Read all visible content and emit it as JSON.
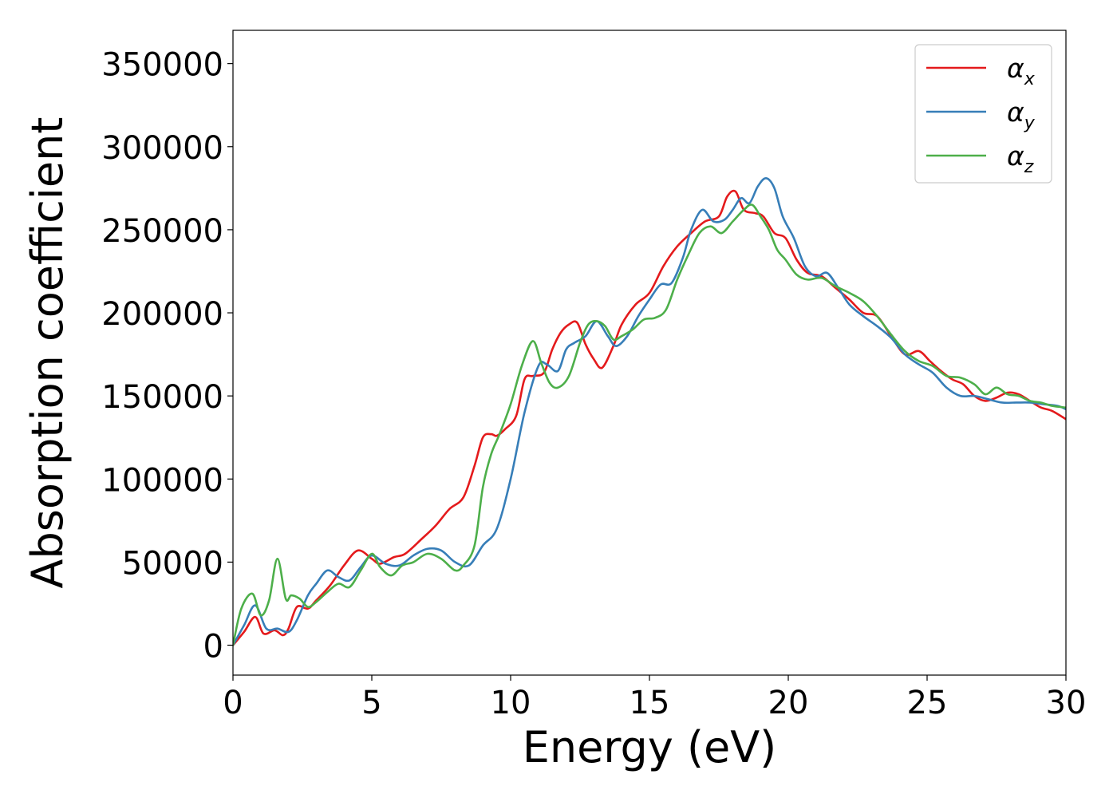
{
  "chart_data": {
    "type": "line",
    "title": "",
    "xlabel": "Energy (eV)",
    "ylabel": "Absorption coefficient",
    "xlim": [
      0,
      30
    ],
    "ylim": [
      -18000,
      370000
    ],
    "xticks": [
      0,
      5,
      10,
      15,
      20,
      25,
      30
    ],
    "yticks": [
      0,
      50000,
      100000,
      150000,
      200000,
      250000,
      300000,
      350000
    ],
    "grid": false,
    "legend_position": "top-right",
    "series": [
      {
        "name": "αx",
        "legend_base": "α",
        "legend_sub": "x",
        "color": "#e41a1c",
        "x": [
          0,
          0.4,
          0.8,
          1.1,
          1.5,
          1.8,
          2.0,
          2.3,
          2.7,
          3.0,
          3.5,
          4.0,
          4.5,
          5.0,
          5.3,
          5.8,
          6.2,
          6.8,
          7.3,
          7.8,
          8.3,
          8.7,
          9.0,
          9.3,
          9.5,
          9.8,
          10.2,
          10.5,
          10.8,
          11.2,
          11.5,
          11.8,
          12.1,
          12.4,
          12.7,
          13.0,
          13.3,
          13.7,
          14.0,
          14.5,
          15.0,
          15.5,
          16.0,
          16.5,
          17.0,
          17.5,
          17.8,
          18.1,
          18.4,
          18.8,
          19.1,
          19.5,
          19.9,
          20.3,
          20.7,
          21.2,
          21.7,
          22.2,
          22.7,
          23.2,
          23.7,
          24.2,
          24.7,
          25.1,
          25.5,
          25.9,
          26.3,
          26.7,
          27.1,
          27.5,
          27.9,
          28.3,
          28.7,
          29.1,
          29.5,
          30.0
        ],
        "values": [
          0,
          8000,
          17000,
          7000,
          9000,
          6000,
          10000,
          23000,
          22000,
          27000,
          36000,
          48000,
          57000,
          52000,
          49000,
          53000,
          55000,
          64000,
          72000,
          82000,
          89000,
          108000,
          125000,
          127000,
          126000,
          130000,
          138000,
          160000,
          162000,
          164000,
          178000,
          188000,
          193000,
          194000,
          181000,
          172000,
          167000,
          180000,
          193000,
          205000,
          212000,
          228000,
          240000,
          248000,
          255000,
          258000,
          270000,
          273000,
          262000,
          260000,
          258000,
          248000,
          245000,
          232000,
          224000,
          222000,
          215000,
          208000,
          200000,
          198000,
          186000,
          175000,
          177000,
          171000,
          165000,
          160000,
          157000,
          150000,
          147000,
          149000,
          152000,
          151000,
          147000,
          143000,
          141000,
          136000
        ]
      },
      {
        "name": "αy",
        "legend_base": "α",
        "legend_sub": "y",
        "color": "#377eb8",
        "x": [
          0,
          0.4,
          0.8,
          1.2,
          1.6,
          2.0,
          2.3,
          2.7,
          3.0,
          3.4,
          3.8,
          4.2,
          4.6,
          5.0,
          5.5,
          6.0,
          6.5,
          7.0,
          7.5,
          8.0,
          8.5,
          9.0,
          9.5,
          10.0,
          10.5,
          11.0,
          11.3,
          11.7,
          12.0,
          12.3,
          12.7,
          13.1,
          13.5,
          13.8,
          14.2,
          14.6,
          15.0,
          15.4,
          15.8,
          16.2,
          16.5,
          16.9,
          17.3,
          17.7,
          18.0,
          18.3,
          18.6,
          18.9,
          19.2,
          19.5,
          19.8,
          20.2,
          20.6,
          21.0,
          21.4,
          21.8,
          22.2,
          22.7,
          23.2,
          23.7,
          24.2,
          24.7,
          25.2,
          25.7,
          26.2,
          26.7,
          27.2,
          27.7,
          28.2,
          28.7,
          29.2,
          29.7,
          30.0
        ],
        "values": [
          0,
          12000,
          24000,
          10000,
          10000,
          8000,
          15000,
          30000,
          37000,
          45000,
          41000,
          39000,
          47000,
          54000,
          49000,
          48000,
          54000,
          58000,
          57000,
          50000,
          48000,
          60000,
          70000,
          100000,
          140000,
          168000,
          169000,
          165000,
          178000,
          182000,
          186000,
          195000,
          186000,
          180000,
          186000,
          198000,
          208000,
          217000,
          218000,
          233000,
          250000,
          262000,
          255000,
          256000,
          262000,
          269000,
          266000,
          276000,
          281000,
          275000,
          258000,
          245000,
          228000,
          222000,
          224000,
          215000,
          205000,
          198000,
          192000,
          185000,
          175000,
          169000,
          164000,
          155000,
          150000,
          150000,
          148000,
          146000,
          146000,
          146000,
          145000,
          144000,
          142000
        ]
      },
      {
        "name": "αz",
        "legend_base": "α",
        "legend_sub": "z",
        "color": "#4daf4a",
        "x": [
          0,
          0.3,
          0.7,
          1.0,
          1.3,
          1.6,
          1.9,
          2.1,
          2.4,
          2.7,
          3.0,
          3.4,
          3.8,
          4.2,
          4.6,
          5.0,
          5.3,
          5.7,
          6.1,
          6.5,
          7.0,
          7.5,
          8.0,
          8.3,
          8.7,
          9.0,
          9.3,
          9.6,
          10.0,
          10.4,
          10.8,
          11.1,
          11.4,
          11.7,
          12.1,
          12.5,
          12.8,
          13.1,
          13.4,
          13.7,
          14.0,
          14.4,
          14.8,
          15.2,
          15.6,
          16.0,
          16.4,
          16.8,
          17.2,
          17.6,
          18.0,
          18.4,
          18.7,
          19.0,
          19.3,
          19.6,
          19.9,
          20.3,
          20.7,
          21.2,
          21.7,
          22.2,
          22.7,
          23.2,
          23.7,
          24.2,
          24.7,
          25.2,
          25.7,
          26.2,
          26.7,
          27.1,
          27.5,
          27.9,
          28.3,
          28.7,
          29.1,
          29.5,
          30.0
        ],
        "values": [
          0,
          22000,
          31000,
          18000,
          27000,
          52000,
          28000,
          30000,
          28000,
          23000,
          26000,
          32000,
          37000,
          35000,
          45000,
          55000,
          47000,
          42000,
          48000,
          50000,
          55000,
          52000,
          45000,
          48000,
          60000,
          95000,
          115000,
          127000,
          145000,
          168000,
          183000,
          170000,
          158000,
          155000,
          162000,
          182000,
          193000,
          195000,
          192000,
          184000,
          186000,
          190000,
          196000,
          197000,
          202000,
          220000,
          235000,
          248000,
          252000,
          248000,
          255000,
          262000,
          265000,
          258000,
          250000,
          238000,
          232000,
          223000,
          220000,
          221000,
          216000,
          212000,
          207000,
          198000,
          187000,
          177000,
          171000,
          168000,
          162000,
          161000,
          157000,
          151000,
          155000,
          151000,
          150000,
          147000,
          146000,
          144000,
          143000
        ]
      }
    ]
  }
}
